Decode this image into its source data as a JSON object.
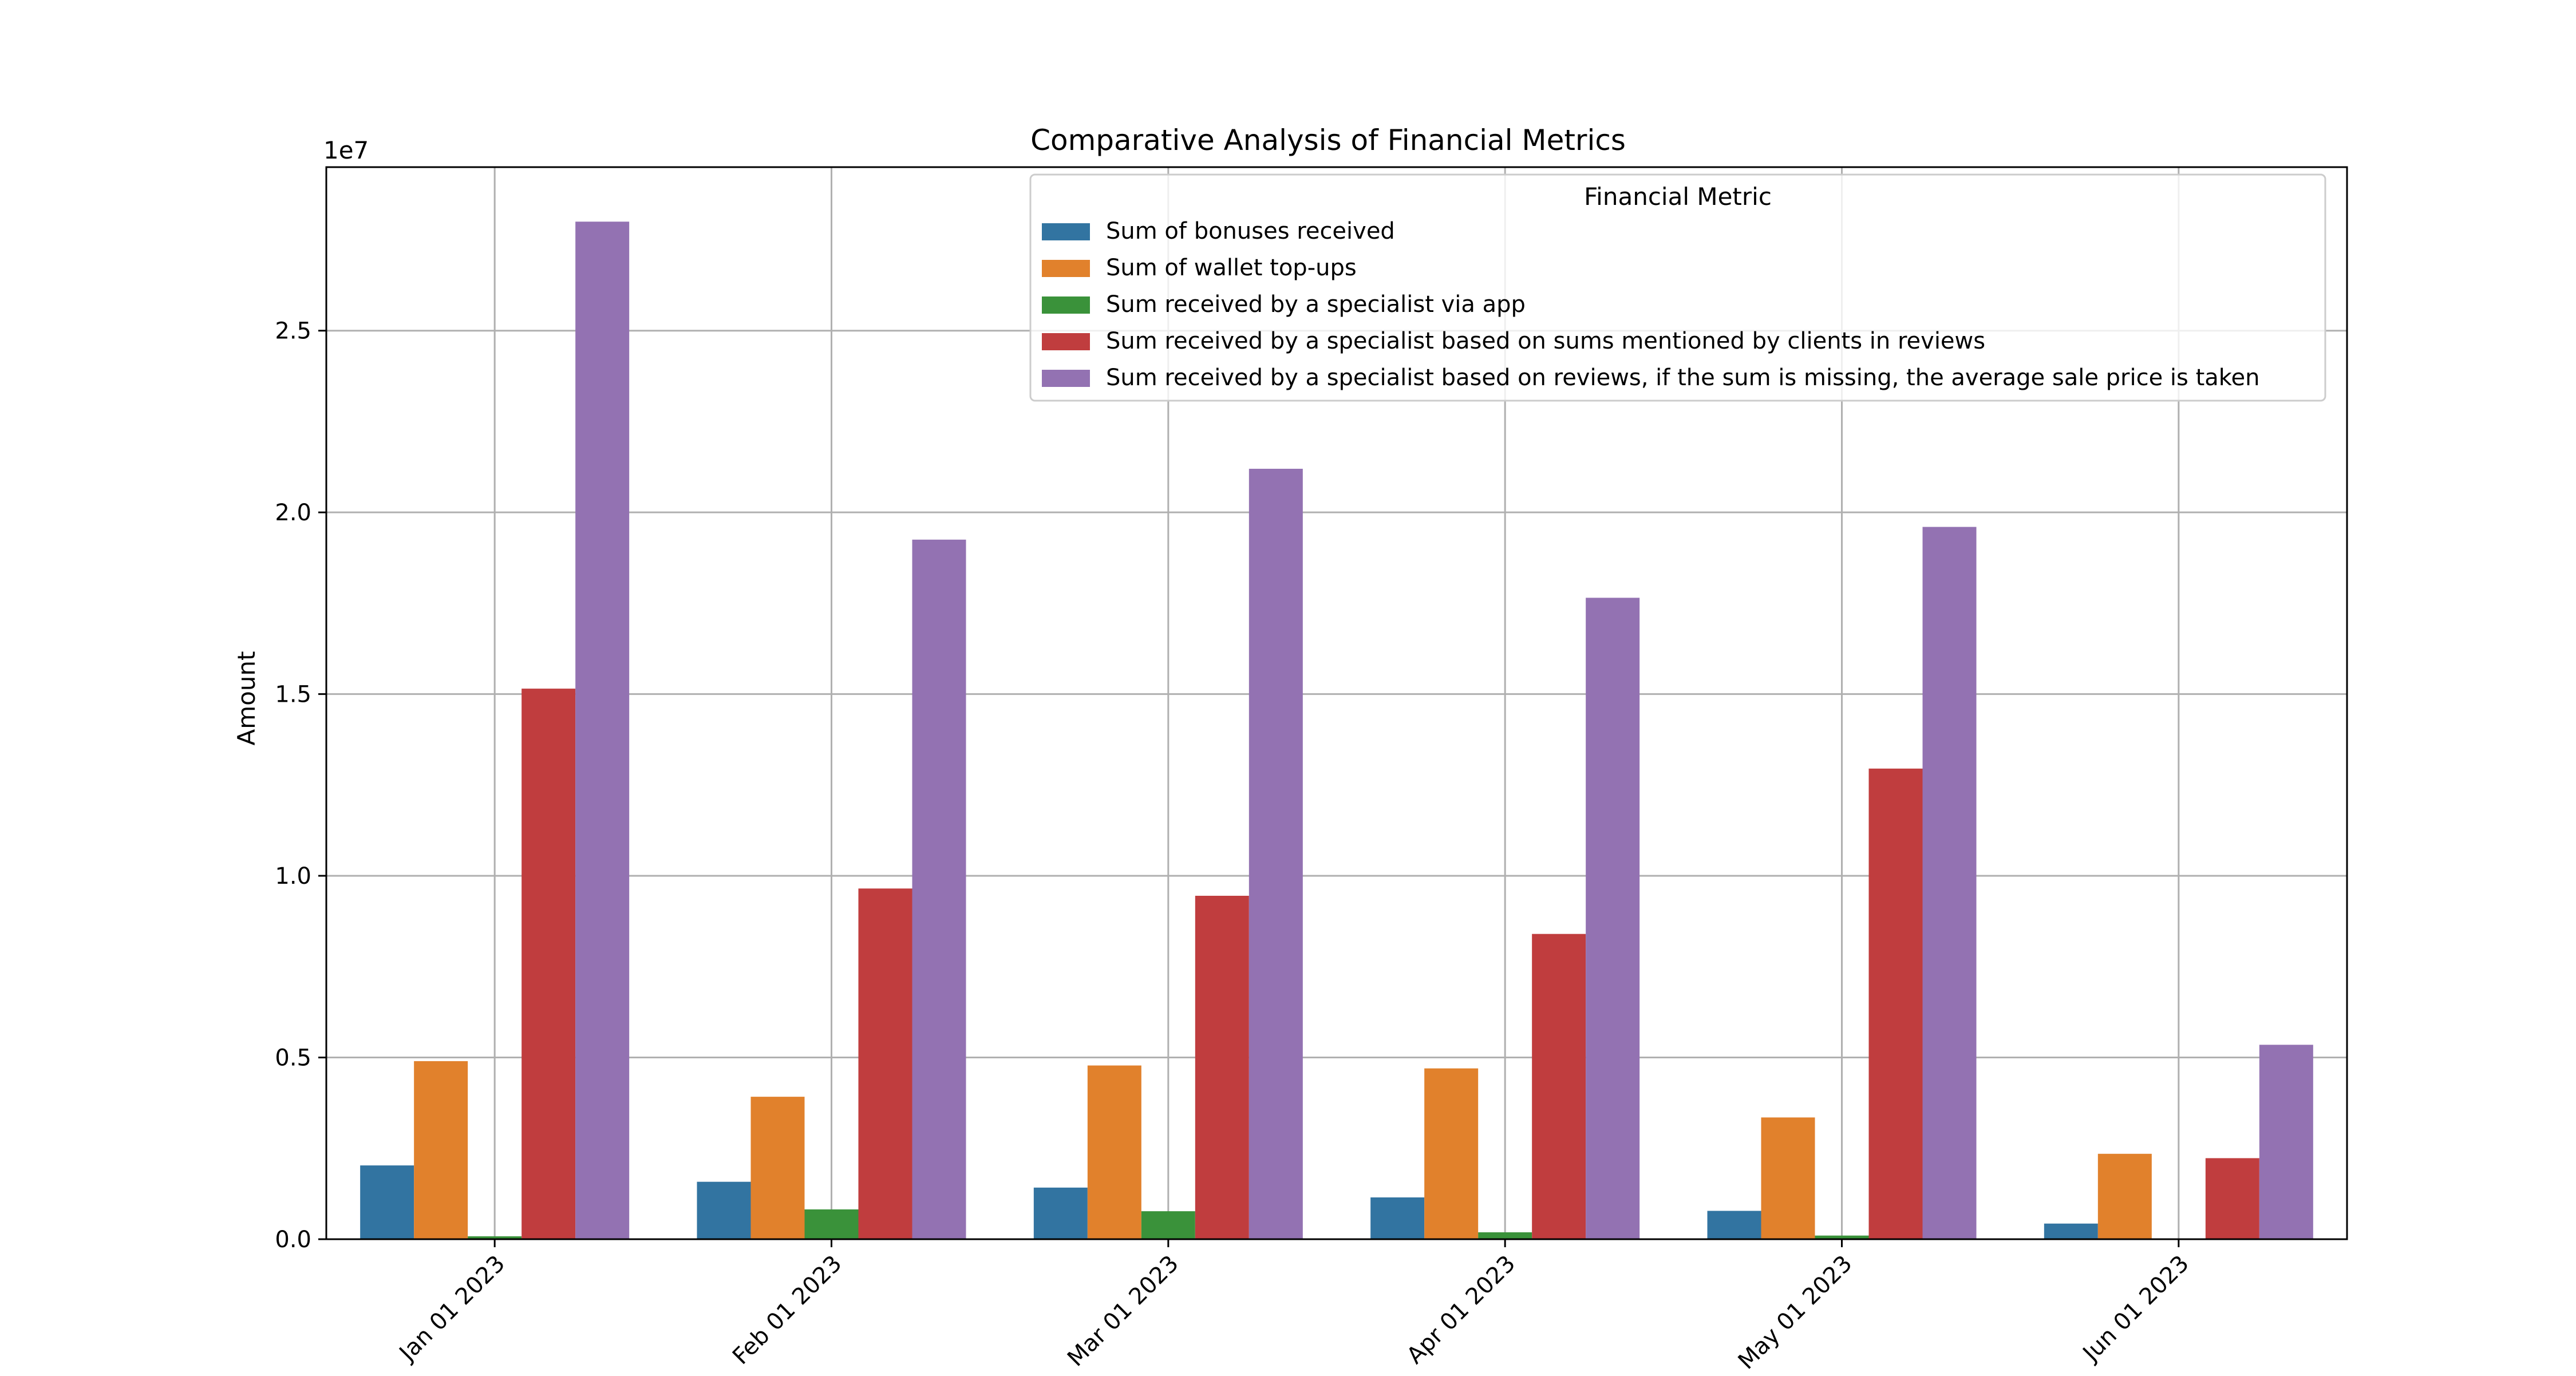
{
  "chart_data": {
    "type": "bar",
    "title": "Comparative Analysis of Financial Metrics",
    "xlabel": "",
    "ylabel": "Amount",
    "y_scale_label": "1e7",
    "y_scale_factor": 10000000,
    "ylim": [
      0,
      29500000
    ],
    "yticks": [
      0,
      5000000,
      10000000,
      15000000,
      20000000,
      25000000
    ],
    "ytick_labels": [
      "0.0",
      "0.5",
      "1.0",
      "1.5",
      "2.0",
      "2.5"
    ],
    "grid": true,
    "legend": {
      "title": "Financial Metric",
      "placement": "top-right"
    },
    "categories": [
      "Jan 01 2023",
      "Feb 01 2023",
      "Mar 01 2023",
      "Apr 01 2023",
      "May 01 2023",
      "Jun 01 2023"
    ],
    "series": [
      {
        "name": "Sum of bonuses received",
        "color": "#3274a1",
        "values": [
          2030000,
          1580000,
          1420000,
          1150000,
          780000,
          430000
        ]
      },
      {
        "name": "Sum of wallet top-ups",
        "color": "#e1812c",
        "values": [
          4900000,
          3920000,
          4780000,
          4700000,
          3350000,
          2350000
        ]
      },
      {
        "name": "Sum received by a specialist via app",
        "color": "#3a923a",
        "values": [
          80000,
          820000,
          770000,
          190000,
          100000,
          0
        ]
      },
      {
        "name": "Sum received by a specialist based on sums mentioned by clients in reviews",
        "color": "#c03d3e",
        "values": [
          15150000,
          9650000,
          9450000,
          8400000,
          12950000,
          2230000
        ]
      },
      {
        "name": "Sum received by a specialist based on reviews, if the sum is missing, the average sale price is taken",
        "color": "#9372b2",
        "values": [
          28000000,
          19250000,
          21200000,
          17650000,
          19600000,
          5350000
        ]
      }
    ]
  }
}
